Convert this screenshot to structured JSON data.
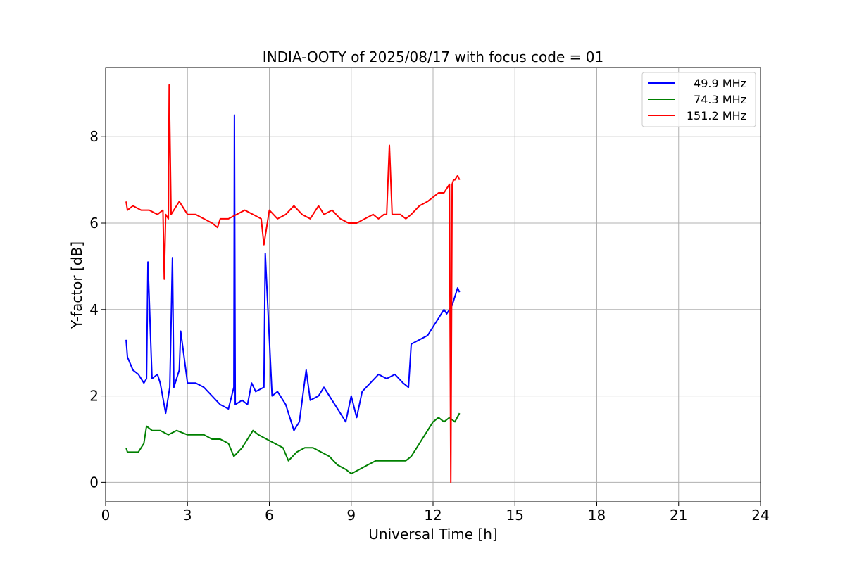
{
  "chart_data": {
    "type": "line",
    "title": "INDIA-OOTY of 2025/08/17 with focus code = 01",
    "xlabel": "Universal Time [h]",
    "ylabel": "Y-factor [dB]",
    "xlim": [
      0,
      24
    ],
    "ylim": [
      -0.45,
      9.6
    ],
    "xticks": [
      0,
      3,
      6,
      9,
      12,
      15,
      18,
      21,
      24
    ],
    "yticks": [
      0,
      2,
      4,
      6,
      8
    ],
    "grid": true,
    "legend_position": "top-right",
    "series": [
      {
        "name": "49.9 MHz",
        "color": "#0000ff",
        "x": [
          0.75,
          0.8,
          1.0,
          1.2,
          1.4,
          1.5,
          1.55,
          1.7,
          1.9,
          2.0,
          2.2,
          2.35,
          2.45,
          2.5,
          2.7,
          2.75,
          3.0,
          3.3,
          3.6,
          3.9,
          4.2,
          4.5,
          4.7,
          4.72,
          4.75,
          5.0,
          5.2,
          5.35,
          5.5,
          5.8,
          5.85,
          6.1,
          6.3,
          6.6,
          6.9,
          7.1,
          7.35,
          7.5,
          7.8,
          8.0,
          8.3,
          8.6,
          8.8,
          9.0,
          9.2,
          9.4,
          9.7,
          10.0,
          10.3,
          10.6,
          10.9,
          11.1,
          11.2,
          11.5,
          11.8,
          12.0,
          12.2,
          12.4,
          12.5,
          12.7,
          12.8,
          12.9,
          12.97
        ],
        "y": [
          3.3,
          2.9,
          2.6,
          2.5,
          2.3,
          2.4,
          5.1,
          2.4,
          2.5,
          2.3,
          1.6,
          2.2,
          5.2,
          2.2,
          2.6,
          3.5,
          2.3,
          2.3,
          2.2,
          2.0,
          1.8,
          1.7,
          2.2,
          8.5,
          1.8,
          1.9,
          1.8,
          2.3,
          2.1,
          2.2,
          5.3,
          2.0,
          2.1,
          1.8,
          1.2,
          1.4,
          2.6,
          1.9,
          2.0,
          2.2,
          1.9,
          1.6,
          1.4,
          2.0,
          1.5,
          2.1,
          2.3,
          2.5,
          2.4,
          2.5,
          2.3,
          2.2,
          3.2,
          3.3,
          3.4,
          3.6,
          3.8,
          4.0,
          3.9,
          4.1,
          4.3,
          4.5,
          4.4
        ]
      },
      {
        "name": "74.3 MHz",
        "color": "#008000",
        "x": [
          0.75,
          0.8,
          1.0,
          1.2,
          1.4,
          1.5,
          1.7,
          2.0,
          2.3,
          2.6,
          3.0,
          3.3,
          3.6,
          3.9,
          4.2,
          4.5,
          4.7,
          5.0,
          5.2,
          5.4,
          5.6,
          5.9,
          6.2,
          6.5,
          6.7,
          7.0,
          7.3,
          7.6,
          7.9,
          8.2,
          8.5,
          8.8,
          9.0,
          9.3,
          9.6,
          9.9,
          10.2,
          10.5,
          10.8,
          11.0,
          11.2,
          11.4,
          11.6,
          11.8,
          12.0,
          12.2,
          12.4,
          12.6,
          12.8,
          12.97
        ],
        "y": [
          0.8,
          0.7,
          0.7,
          0.7,
          0.9,
          1.3,
          1.2,
          1.2,
          1.1,
          1.2,
          1.1,
          1.1,
          1.1,
          1.0,
          1.0,
          0.9,
          0.6,
          0.8,
          1.0,
          1.2,
          1.1,
          1.0,
          0.9,
          0.8,
          0.5,
          0.7,
          0.8,
          0.8,
          0.7,
          0.6,
          0.4,
          0.3,
          0.2,
          0.3,
          0.4,
          0.5,
          0.5,
          0.5,
          0.5,
          0.5,
          0.6,
          0.8,
          1.0,
          1.2,
          1.4,
          1.5,
          1.4,
          1.5,
          1.4,
          1.6
        ]
      },
      {
        "name": "151.2 MHz",
        "color": "#ff0000",
        "x": [
          0.75,
          0.8,
          1.0,
          1.3,
          1.6,
          1.9,
          2.1,
          2.15,
          2.2,
          2.3,
          2.33,
          2.4,
          2.7,
          3.0,
          3.3,
          3.6,
          3.9,
          4.1,
          4.2,
          4.5,
          4.8,
          5.1,
          5.4,
          5.7,
          5.8,
          6.0,
          6.3,
          6.6,
          6.9,
          7.2,
          7.5,
          7.8,
          8.0,
          8.3,
          8.6,
          8.9,
          9.2,
          9.5,
          9.8,
          10.0,
          10.2,
          10.3,
          10.4,
          10.5,
          10.8,
          11.0,
          11.2,
          11.5,
          11.8,
          12.0,
          12.2,
          12.4,
          12.6,
          12.65,
          12.7,
          12.75,
          12.8,
          12.9,
          12.97
        ],
        "y": [
          6.5,
          6.3,
          6.4,
          6.3,
          6.3,
          6.2,
          6.3,
          4.7,
          6.2,
          6.1,
          9.2,
          6.2,
          6.5,
          6.2,
          6.2,
          6.1,
          6.0,
          5.9,
          6.1,
          6.1,
          6.2,
          6.3,
          6.2,
          6.1,
          5.5,
          6.3,
          6.1,
          6.2,
          6.4,
          6.2,
          6.1,
          6.4,
          6.2,
          6.3,
          6.1,
          6.0,
          6.0,
          6.1,
          6.2,
          6.1,
          6.2,
          6.2,
          7.8,
          6.2,
          6.2,
          6.1,
          6.2,
          6.4,
          6.5,
          6.6,
          6.7,
          6.7,
          6.9,
          0.0,
          6.9,
          7.0,
          7.0,
          7.1,
          7.0
        ]
      }
    ]
  }
}
